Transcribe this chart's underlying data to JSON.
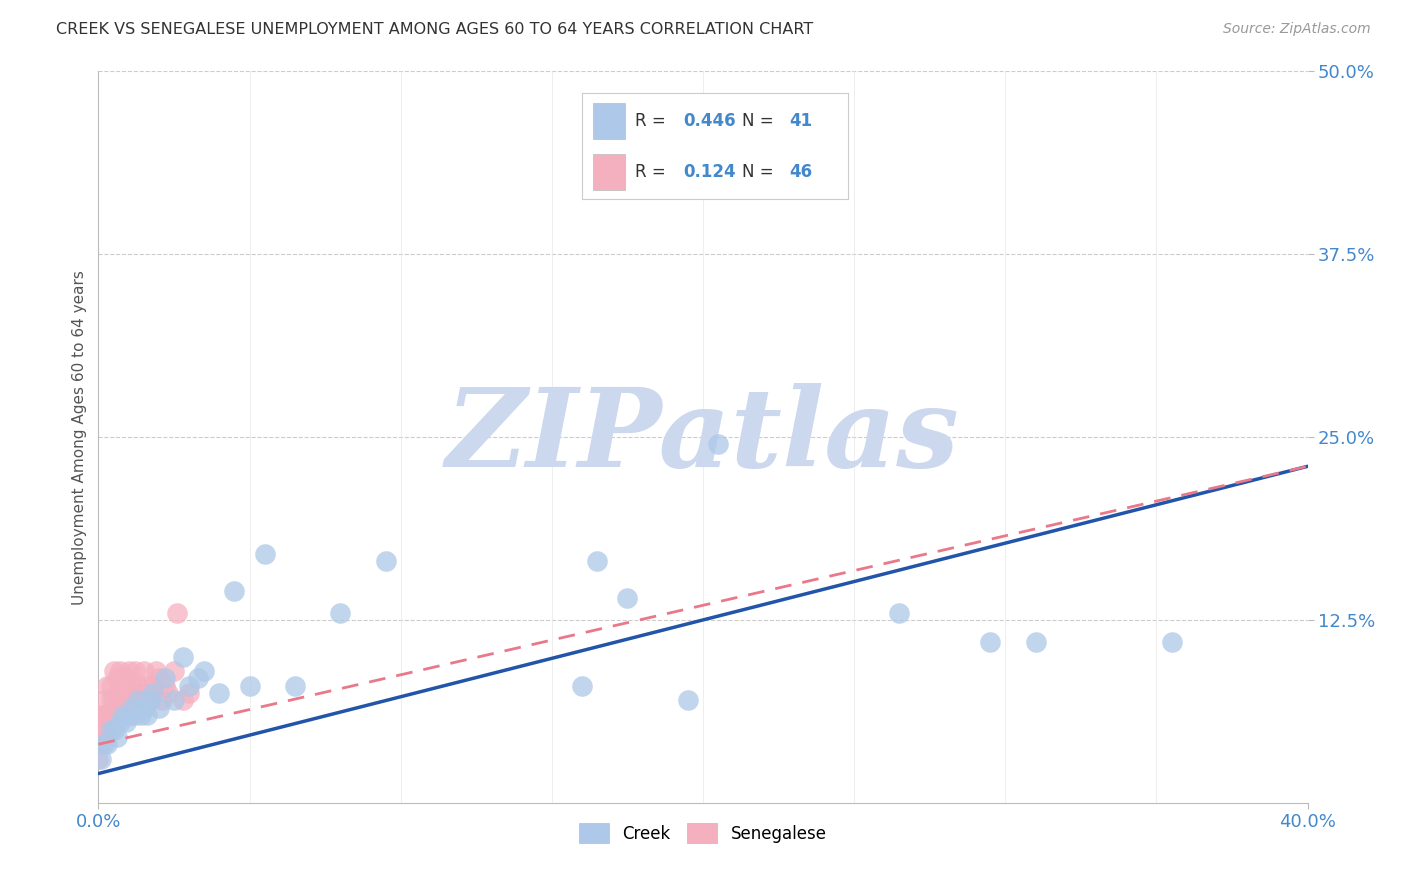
{
  "title": "CREEK VS SENEGALESE UNEMPLOYMENT AMONG AGES 60 TO 64 YEARS CORRELATION CHART",
  "source": "Source: ZipAtlas.com",
  "ylabel": "Unemployment Among Ages 60 to 64 years",
  "ytick_labels": [
    "12.5%",
    "25.0%",
    "37.5%",
    "50.0%"
  ],
  "ytick_values": [
    0.125,
    0.25,
    0.375,
    0.5
  ],
  "xmin": 0.0,
  "xmax": 0.4,
  "ymin": 0.0,
  "ymax": 0.5,
  "creek_R": "0.446",
  "creek_N": "41",
  "senegalese_R": "0.124",
  "senegalese_N": "46",
  "creek_color": "#adc8e8",
  "senegalese_color": "#f5b0c0",
  "creek_line_color": "#2255aa",
  "senegalese_line_color": "#e8788a",
  "background_color": "#ffffff",
  "watermark": "ZIPatlas",
  "watermark_color": "#ccd8ee",
  "creek_x": [
    0.001,
    0.002,
    0.003,
    0.004,
    0.005,
    0.006,
    0.007,
    0.008,
    0.009,
    0.01,
    0.011,
    0.012,
    0.013,
    0.014,
    0.015,
    0.016,
    0.017,
    0.018,
    0.02,
    0.022,
    0.025,
    0.028,
    0.03,
    0.033,
    0.035,
    0.04,
    0.045,
    0.05,
    0.055,
    0.065,
    0.08,
    0.095,
    0.16,
    0.175,
    0.195,
    0.205,
    0.165,
    0.265,
    0.295,
    0.31,
    0.355
  ],
  "creek_y": [
    0.03,
    0.04,
    0.04,
    0.05,
    0.05,
    0.045,
    0.055,
    0.06,
    0.055,
    0.06,
    0.065,
    0.06,
    0.07,
    0.06,
    0.065,
    0.06,
    0.07,
    0.075,
    0.065,
    0.085,
    0.07,
    0.1,
    0.08,
    0.085,
    0.09,
    0.075,
    0.145,
    0.08,
    0.17,
    0.08,
    0.13,
    0.165,
    0.08,
    0.14,
    0.07,
    0.245,
    0.165,
    0.13,
    0.11,
    0.11,
    0.11
  ],
  "senegalese_x": [
    0.0,
    0.001,
    0.001,
    0.001,
    0.002,
    0.002,
    0.002,
    0.003,
    0.003,
    0.003,
    0.004,
    0.004,
    0.004,
    0.005,
    0.005,
    0.005,
    0.006,
    0.006,
    0.006,
    0.007,
    0.007,
    0.007,
    0.008,
    0.008,
    0.009,
    0.009,
    0.01,
    0.01,
    0.011,
    0.012,
    0.012,
    0.013,
    0.014,
    0.015,
    0.016,
    0.017,
    0.018,
    0.019,
    0.02,
    0.021,
    0.022,
    0.023,
    0.025,
    0.026,
    0.028,
    0.03
  ],
  "senegalese_y": [
    0.03,
    0.04,
    0.05,
    0.06,
    0.05,
    0.06,
    0.07,
    0.05,
    0.06,
    0.08,
    0.06,
    0.07,
    0.08,
    0.06,
    0.07,
    0.09,
    0.065,
    0.075,
    0.085,
    0.065,
    0.075,
    0.09,
    0.07,
    0.085,
    0.07,
    0.085,
    0.07,
    0.09,
    0.08,
    0.075,
    0.09,
    0.08,
    0.075,
    0.09,
    0.08,
    0.07,
    0.08,
    0.09,
    0.085,
    0.07,
    0.08,
    0.075,
    0.09,
    0.13,
    0.07,
    0.075
  ],
  "creek_trend_x0": 0.0,
  "creek_trend_x1": 0.4,
  "creek_trend_y0": 0.02,
  "creek_trend_y1": 0.23,
  "sene_trend_x0": 0.0,
  "sene_trend_x1": 0.4,
  "sene_trend_y0": 0.04,
  "sene_trend_y1": 0.23
}
